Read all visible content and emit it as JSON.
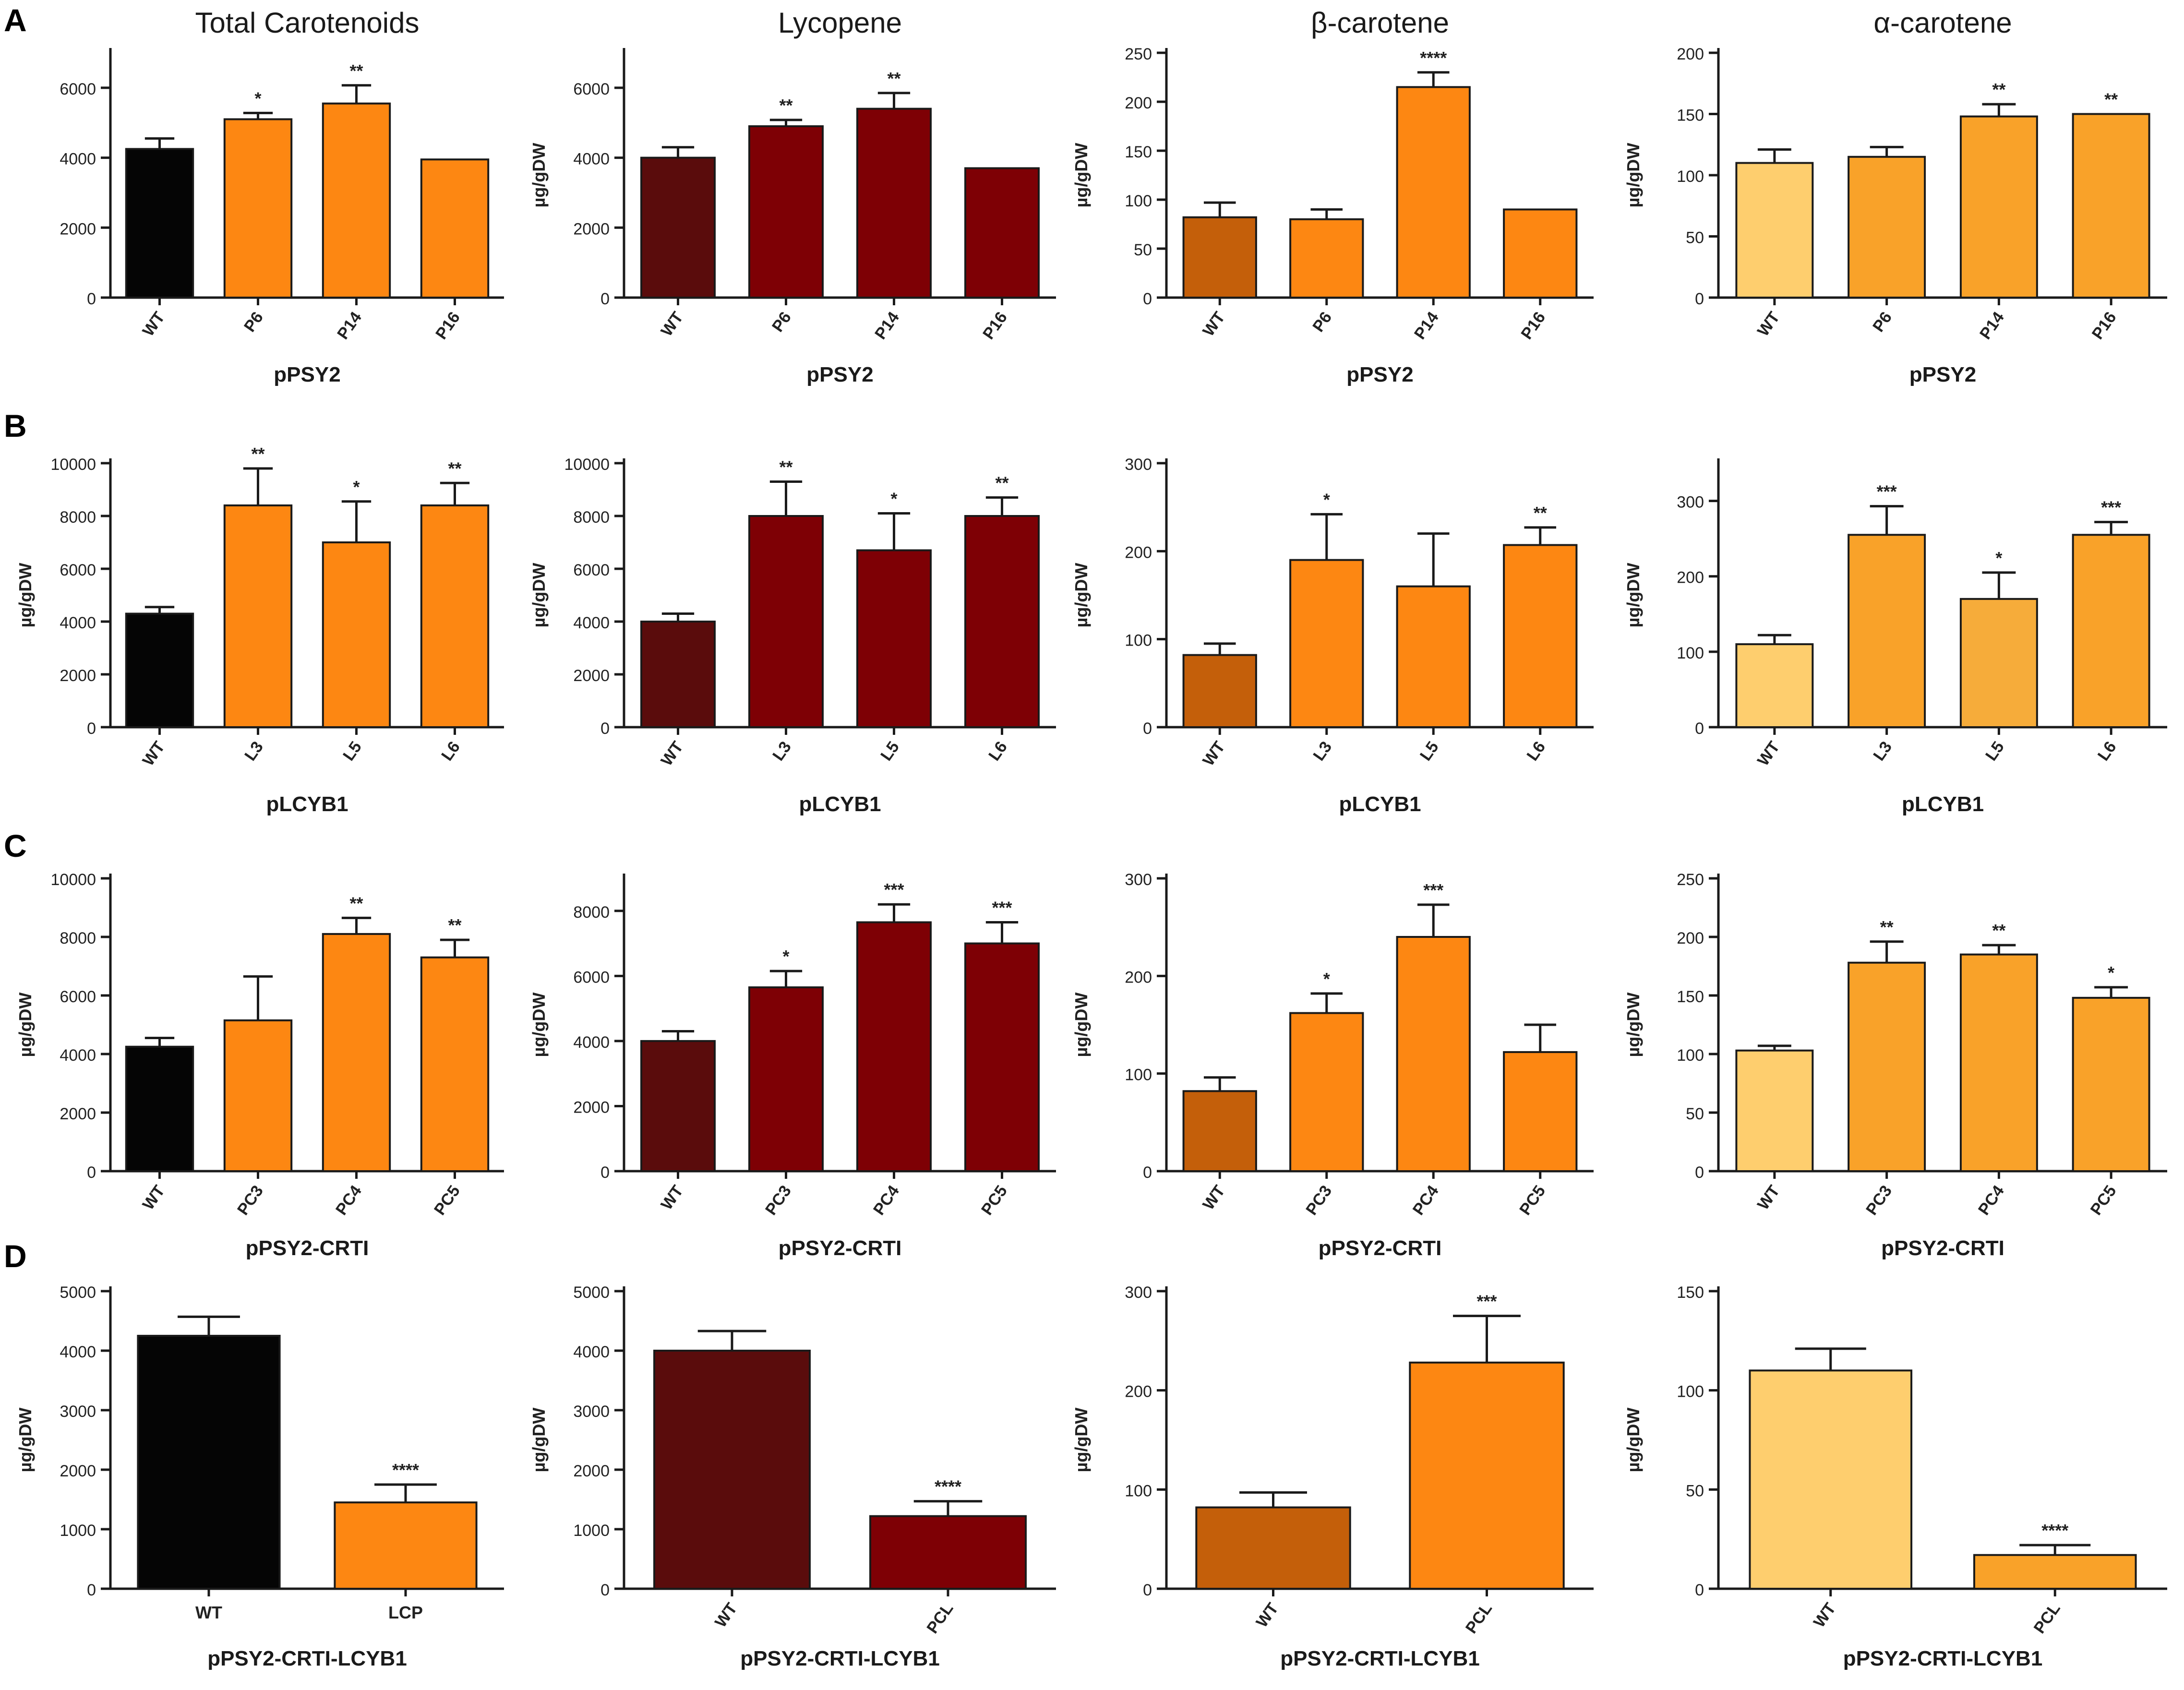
{
  "figure": {
    "rows": [
      {
        "letter": "A"
      },
      {
        "letter": "B"
      },
      {
        "letter": "C"
      },
      {
        "letter": "D"
      }
    ],
    "column_titles": [
      "Total Carotenoids",
      "Lycopene",
      "β-carotene",
      "α-carotene"
    ]
  },
  "colors": {
    "black": "#050505",
    "orange": "#fd8712",
    "dark_red": "#7e0005",
    "wt_lycopene": "#5a0c0c",
    "wt_beta": "#c45f0a",
    "wt_alpha": "#fece6e",
    "alpha_orange": "#f9a229",
    "alpha_light": "#f6ac3a",
    "axis": "#1a1a1a"
  },
  "chart_data": [
    {
      "id": "A1",
      "type": "bar",
      "row": 0,
      "col": 0,
      "title": "Total Carotenoids",
      "ylabel": "",
      "xlabel": "pPSY2",
      "ylim": [
        0,
        7000
      ],
      "yticks": [
        0,
        2000,
        4000,
        6000
      ],
      "categories": [
        "WT",
        "P6",
        "P14",
        "P16"
      ],
      "values": [
        4250,
        5100,
        5550,
        3950
      ],
      "errors": [
        300,
        180,
        520,
        0
      ],
      "sig": [
        "",
        "*",
        "**",
        ""
      ],
      "colors": [
        "black",
        "orange",
        "orange",
        "orange"
      ]
    },
    {
      "id": "A2",
      "type": "bar",
      "row": 0,
      "col": 1,
      "title": "Lycopene",
      "ylabel": "µg/gDW",
      "xlabel": "pPSY2",
      "ylim": [
        0,
        7000
      ],
      "yticks": [
        0,
        2000,
        4000,
        6000
      ],
      "categories": [
        "WT",
        "P6",
        "P14",
        "P16"
      ],
      "values": [
        4000,
        4900,
        5400,
        3700
      ],
      "errors": [
        300,
        180,
        450,
        0
      ],
      "sig": [
        "",
        "**",
        "**",
        ""
      ],
      "colors": [
        "wt_lycopene",
        "dark_red",
        "dark_red",
        "dark_red"
      ]
    },
    {
      "id": "A3",
      "type": "bar",
      "row": 0,
      "col": 2,
      "title": "β-carotene",
      "ylabel": "µg/gDW",
      "xlabel": "pPSY2",
      "ylim": [
        0,
        250
      ],
      "yticks": [
        0,
        50,
        100,
        150,
        200,
        250
      ],
      "categories": [
        "WT",
        "P6",
        "P14",
        "P16"
      ],
      "values": [
        82,
        80,
        215,
        90
      ],
      "errors": [
        15,
        10,
        15,
        0
      ],
      "sig": [
        "",
        "",
        "****",
        ""
      ],
      "colors": [
        "wt_beta",
        "orange",
        "orange",
        "orange"
      ]
    },
    {
      "id": "A4",
      "type": "bar",
      "row": 0,
      "col": 3,
      "title": "α-carotene",
      "ylabel": "µg/gDW",
      "xlabel": "pPSY2",
      "ylim": [
        0,
        200
      ],
      "yticks": [
        0,
        50,
        100,
        150,
        200
      ],
      "categories": [
        "WT",
        "P6",
        "P14",
        "P16"
      ],
      "values": [
        110,
        115,
        148,
        150
      ],
      "errors": [
        11,
        8,
        10,
        0
      ],
      "sig": [
        "",
        "",
        "**",
        "**"
      ],
      "colors": [
        "wt_alpha",
        "alpha_orange",
        "alpha_orange",
        "alpha_orange"
      ]
    },
    {
      "id": "B1",
      "type": "bar",
      "row": 1,
      "col": 0,
      "title": "",
      "ylabel": "µg/gDW",
      "xlabel": "pLCYB1",
      "ylim": [
        0,
        10000
      ],
      "yticks": [
        0,
        2000,
        4000,
        6000,
        8000,
        10000
      ],
      "categories": [
        "WT",
        "L3",
        "L5",
        "L6"
      ],
      "values": [
        4300,
        8400,
        7000,
        8400
      ],
      "errors": [
        250,
        1400,
        1550,
        850
      ],
      "sig": [
        "",
        "**",
        "*",
        "**"
      ],
      "colors": [
        "black",
        "orange",
        "orange",
        "orange"
      ]
    },
    {
      "id": "B2",
      "type": "bar",
      "row": 1,
      "col": 1,
      "title": "",
      "ylabel": "µg/gDW",
      "xlabel": "pLCYB1",
      "ylim": [
        0,
        10000
      ],
      "yticks": [
        0,
        2000,
        4000,
        6000,
        8000,
        10000
      ],
      "categories": [
        "WT",
        "L3",
        "L5",
        "L6"
      ],
      "values": [
        4000,
        8000,
        6700,
        8000
      ],
      "errors": [
        300,
        1300,
        1400,
        700
      ],
      "sig": [
        "",
        "**",
        "*",
        "**"
      ],
      "colors": [
        "wt_lycopene",
        "dark_red",
        "dark_red",
        "dark_red"
      ]
    },
    {
      "id": "B3",
      "type": "bar",
      "row": 1,
      "col": 2,
      "title": "",
      "ylabel": "µg/gDW",
      "xlabel": "pLCYB1",
      "ylim": [
        0,
        300
      ],
      "yticks": [
        0,
        100,
        200,
        300
      ],
      "categories": [
        "WT",
        "L3",
        "L5",
        "L6"
      ],
      "values": [
        82,
        190,
        160,
        207
      ],
      "errors": [
        13,
        52,
        60,
        20
      ],
      "sig": [
        "",
        "*",
        "",
        "**"
      ],
      "colors": [
        "wt_beta",
        "orange",
        "orange",
        "orange"
      ]
    },
    {
      "id": "B4",
      "type": "bar",
      "row": 1,
      "col": 3,
      "title": "",
      "ylabel": "µg/gDW",
      "xlabel": "pLCYB1",
      "ylim": [
        0,
        350
      ],
      "yticks": [
        0,
        100,
        200,
        300
      ],
      "categories": [
        "WT",
        "L3",
        "L5",
        "L6"
      ],
      "values": [
        110,
        255,
        170,
        255
      ],
      "errors": [
        12,
        38,
        35,
        17
      ],
      "sig": [
        "",
        "***",
        "*",
        "***"
      ],
      "colors": [
        "wt_alpha",
        "alpha_orange",
        "alpha_light",
        "alpha_orange"
      ]
    },
    {
      "id": "C1",
      "type": "bar",
      "row": 2,
      "col": 0,
      "title": "",
      "ylabel": "µg/gDW",
      "xlabel": "pPSY2-CRTI",
      "ylim": [
        0,
        10000
      ],
      "yticks": [
        0,
        2000,
        4000,
        6000,
        8000,
        10000
      ],
      "categories": [
        "WT",
        "PC3",
        "PC4",
        "PC5"
      ],
      "values": [
        4250,
        5150,
        8100,
        7300
      ],
      "errors": [
        300,
        1500,
        550,
        600
      ],
      "sig": [
        "",
        "",
        "**",
        "**"
      ],
      "colors": [
        "black",
        "orange",
        "orange",
        "orange"
      ]
    },
    {
      "id": "C2",
      "type": "bar",
      "row": 2,
      "col": 1,
      "title": "",
      "ylabel": "µg/gDW",
      "xlabel": "pPSY2-CRTI",
      "ylim": [
        0,
        9000
      ],
      "yticks": [
        0,
        2000,
        4000,
        6000,
        8000
      ],
      "categories": [
        "WT",
        "PC3",
        "PC4",
        "PC5"
      ],
      "values": [
        4000,
        5650,
        7650,
        7000
      ],
      "errors": [
        300,
        500,
        550,
        650
      ],
      "sig": [
        "",
        "*",
        "***",
        "***"
      ],
      "colors": [
        "wt_lycopene",
        "dark_red",
        "dark_red",
        "dark_red"
      ]
    },
    {
      "id": "C3",
      "type": "bar",
      "row": 2,
      "col": 2,
      "title": "",
      "ylabel": "µg/gDW",
      "xlabel": "pPSY2-CRTI",
      "ylim": [
        0,
        300
      ],
      "yticks": [
        0,
        100,
        200,
        300
      ],
      "categories": [
        "WT",
        "PC3",
        "PC4",
        "PC5"
      ],
      "values": [
        82,
        162,
        240,
        122
      ],
      "errors": [
        14,
        20,
        33,
        28
      ],
      "sig": [
        "",
        "*",
        "***",
        ""
      ],
      "colors": [
        "wt_beta",
        "orange",
        "orange",
        "orange"
      ]
    },
    {
      "id": "C4",
      "type": "bar",
      "row": 2,
      "col": 3,
      "title": "",
      "ylabel": "µg/gDW",
      "xlabel": "pPSY2-CRTI",
      "ylim": [
        0,
        250
      ],
      "yticks": [
        0,
        50,
        100,
        150,
        200,
        250
      ],
      "categories": [
        "WT",
        "PC3",
        "PC4",
        "PC5"
      ],
      "values": [
        103,
        178,
        185,
        148
      ],
      "errors": [
        4,
        18,
        8,
        9
      ],
      "sig": [
        "",
        "**",
        "**",
        "*"
      ],
      "colors": [
        "wt_alpha",
        "alpha_orange",
        "alpha_orange",
        "alpha_orange"
      ]
    },
    {
      "id": "D1",
      "type": "bar",
      "row": 3,
      "col": 0,
      "title": "",
      "ylabel": "µg/gDW",
      "xlabel": "pPSY2-CRTI-LCYB1",
      "ylim": [
        0,
        5000
      ],
      "yticks": [
        0,
        1000,
        2000,
        3000,
        4000,
        5000
      ],
      "categories": [
        "WT",
        "LCP"
      ],
      "values": [
        4250,
        1450
      ],
      "errors": [
        320,
        300
      ],
      "sig": [
        "",
        "****"
      ],
      "colors": [
        "black",
        "orange"
      ],
      "tick_rotate": false
    },
    {
      "id": "D2",
      "type": "bar",
      "row": 3,
      "col": 1,
      "title": "",
      "ylabel": "µg/gDW",
      "xlabel": "pPSY2-CRTI-LCYB1",
      "ylim": [
        0,
        5000
      ],
      "yticks": [
        0,
        1000,
        2000,
        3000,
        4000,
        5000
      ],
      "categories": [
        "WT",
        "PCL"
      ],
      "values": [
        4000,
        1220
      ],
      "errors": [
        330,
        250
      ],
      "sig": [
        "",
        "****"
      ],
      "colors": [
        "wt_lycopene",
        "dark_red"
      ]
    },
    {
      "id": "D3",
      "type": "bar",
      "row": 3,
      "col": 2,
      "title": "",
      "ylabel": "µg/gDW",
      "xlabel": "pPSY2-CRTI-LCYB1",
      "ylim": [
        0,
        300
      ],
      "yticks": [
        0,
        100,
        200,
        300
      ],
      "categories": [
        "WT",
        "PCL"
      ],
      "values": [
        82,
        228
      ],
      "errors": [
        15,
        47
      ],
      "sig": [
        "",
        "***"
      ],
      "colors": [
        "wt_beta",
        "orange"
      ]
    },
    {
      "id": "D4",
      "type": "bar",
      "row": 3,
      "col": 3,
      "title": "",
      "ylabel": "µg/gDW",
      "xlabel": "pPSY2-CRTI-LCYB1",
      "ylim": [
        0,
        150
      ],
      "yticks": [
        0,
        50,
        100,
        150
      ],
      "categories": [
        "WT",
        "PCL"
      ],
      "values": [
        110,
        17
      ],
      "errors": [
        11,
        5
      ],
      "sig": [
        "",
        "****"
      ],
      "colors": [
        "wt_alpha",
        "alpha_orange"
      ]
    }
  ]
}
